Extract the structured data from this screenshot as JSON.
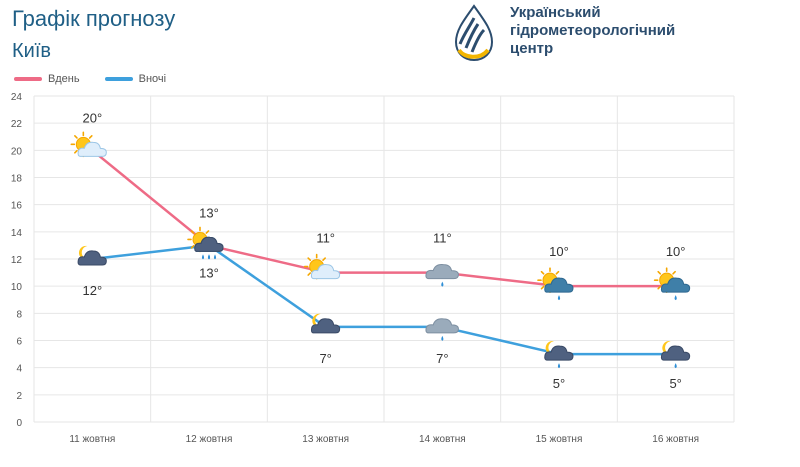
{
  "header": {
    "title": "Графік прогнозу",
    "city": "Київ"
  },
  "logo": {
    "line1": "Український",
    "line2": "гідрометеорологічний",
    "line3": "центр"
  },
  "colors": {
    "day": "#ee6b86",
    "night": "#3ea0dd",
    "grid": "#e6e6e6",
    "title": "#1f5f86"
  },
  "chart_data": {
    "type": "line",
    "categories": [
      "11 жовтня",
      "12 жовтня",
      "13 жовтня",
      "14 жовтня",
      "15 жовтня",
      "16 жовтня"
    ],
    "series": [
      {
        "name": "Вдень",
        "values": [
          20,
          13,
          11,
          11,
          10,
          10
        ],
        "labels": [
          "20°",
          "13°",
          "11°",
          "11°",
          "10°",
          "10°"
        ],
        "icons": [
          "sun-cloud-icon",
          "sun-cloud-rain-icon",
          "sun-cloud-icon",
          "cloud-rain-icon",
          "sun-cloud-rain-icon",
          "sun-cloud-rain-icon"
        ]
      },
      {
        "name": "Вночі",
        "values": [
          12,
          13,
          7,
          7,
          5,
          5
        ],
        "labels": [
          "12°",
          "13°",
          "7°",
          "7°",
          "5°",
          "5°"
        ],
        "icons": [
          "moon-cloud-icon",
          "moon-cloud-rain-icon",
          "moon-cloud-icon",
          "cloud-rain-icon",
          "moon-cloud-rain-icon",
          "moon-cloud-rain-icon"
        ]
      }
    ],
    "ylim": [
      0,
      24
    ],
    "yticks": [
      0,
      2,
      4,
      6,
      8,
      10,
      12,
      14,
      16,
      18,
      20,
      22,
      24
    ],
    "grid": true,
    "legend_position": "top-left"
  }
}
